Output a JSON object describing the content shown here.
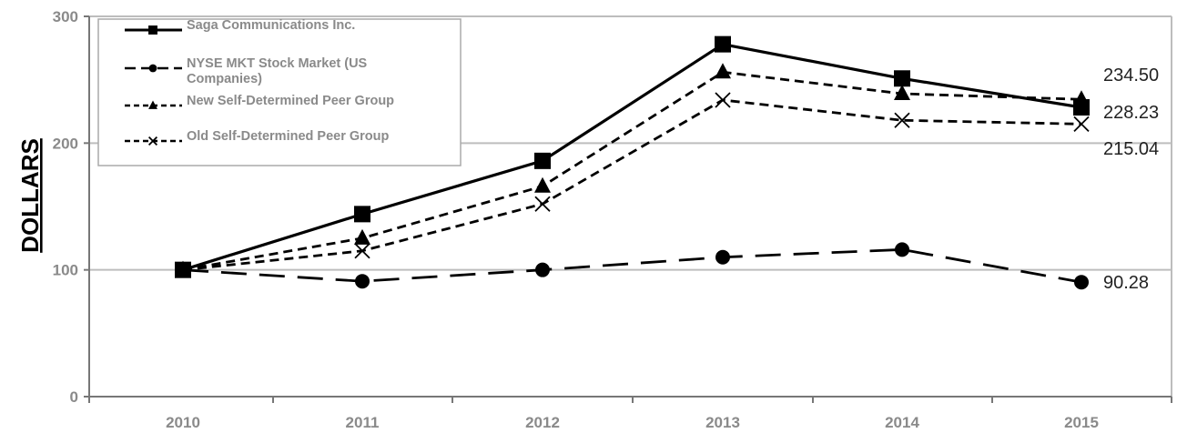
{
  "chart_data": {
    "type": "line",
    "x": [
      "2010",
      "2011",
      "2012",
      "2013",
      "2014",
      "2015"
    ],
    "ylabel": "DOLLARS",
    "ylim": [
      0,
      300
    ],
    "yticks": [
      "0",
      "100",
      "200",
      "300"
    ],
    "grid": true,
    "legend_position": "top-left",
    "series": [
      {
        "name": "Saga Communications Inc.",
        "values": [
          100,
          144,
          186,
          278,
          251,
          228.23
        ],
        "marker": "square",
        "dash": "solid",
        "color": "#000000"
      },
      {
        "name": "NYSE MKT Stock Market (US Companies)",
        "legend_lines": [
          "NYSE MKT Stock Market (US",
          "Companies)"
        ],
        "values": [
          100,
          91,
          100,
          110,
          116,
          90.28
        ],
        "marker": "circle",
        "dash": "long",
        "color": "#000000"
      },
      {
        "name": "New Self-Determined Peer Group",
        "values": [
          100,
          125,
          166,
          256,
          239,
          234.5
        ],
        "marker": "triangle",
        "dash": "short",
        "color": "#000000"
      },
      {
        "name": "Old Self-Determined Peer Group",
        "values": [
          100,
          115,
          152,
          234,
          218,
          215.04
        ],
        "marker": "x",
        "dash": "short",
        "color": "#000000"
      }
    ],
    "annotations": [
      {
        "series": 2,
        "text": "234.50"
      },
      {
        "series": 0,
        "text": "228.23"
      },
      {
        "series": 3,
        "text": "215.04"
      },
      {
        "series": 1,
        "text": "90.28"
      }
    ]
  }
}
